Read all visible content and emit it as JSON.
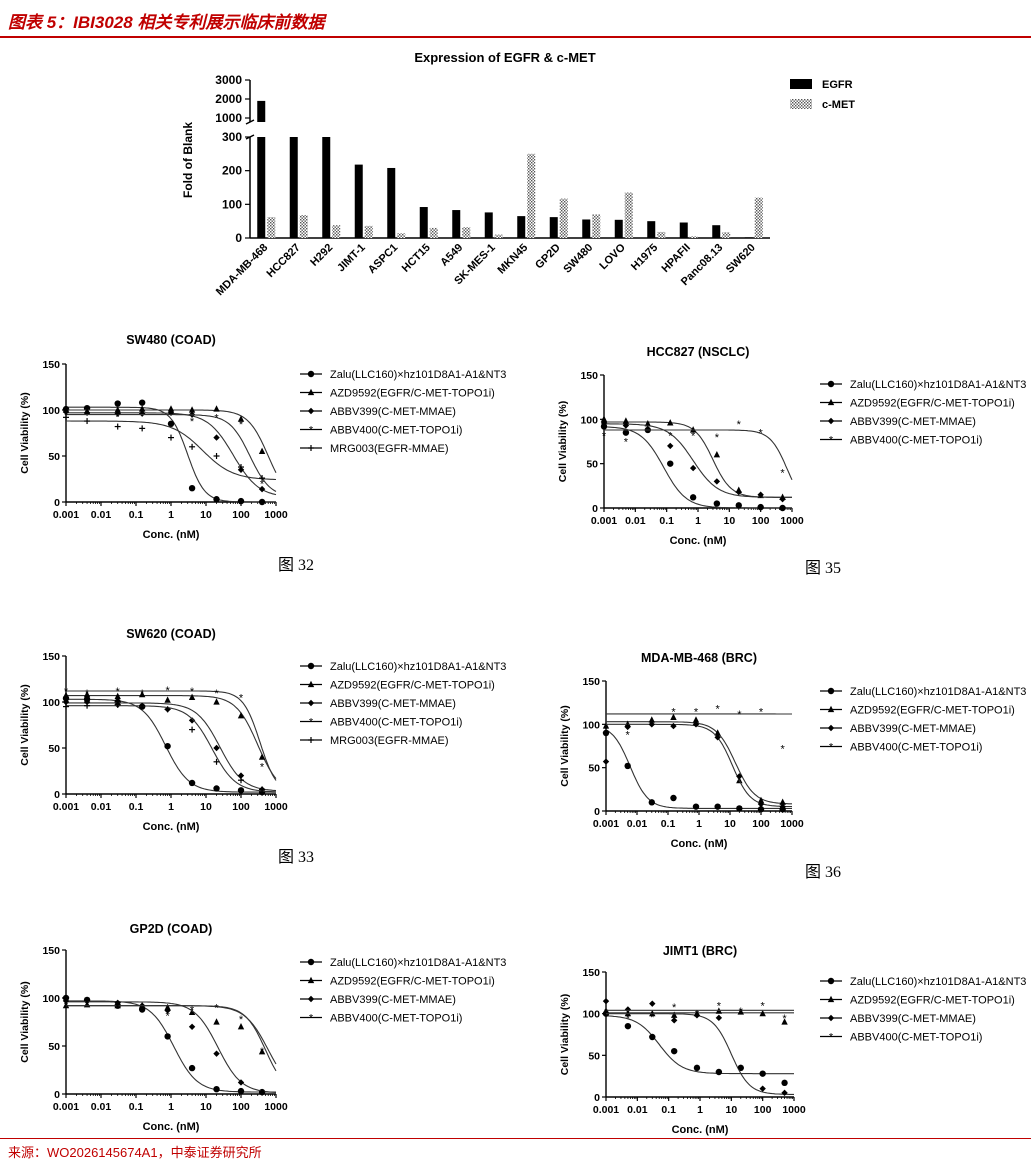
{
  "header": {
    "title": "图表 5：IBI3028 相关专利展示临床前数据"
  },
  "footer": {
    "source": "来源：WO2026145674A1，中泰证券研究所"
  },
  "colors": {
    "accent": "#c00000",
    "ink": "#000000",
    "fit": "#333333"
  },
  "chart_data": [
    {
      "id": "bar",
      "type": "bar",
      "title": "Expression of EGFR & c-MET",
      "ylabel": "Fold of Blank",
      "broken_axis": true,
      "yticks_lower": [
        0,
        100,
        200,
        300
      ],
      "yticks_upper": [
        1000,
        2000,
        3000
      ],
      "categories": [
        "MDA-MB-468",
        "HCC827",
        "H292",
        "JIMT-1",
        "ASPC1",
        "HCT15",
        "A549",
        "SK-MES-1",
        "MKN45",
        "GP2D",
        "SW480",
        "LOVO",
        "H1975",
        "HPAFII",
        "Panc08.13",
        "SW620"
      ],
      "series": [
        {
          "name": "EGFR",
          "values": [
            1900,
            300,
            300,
            218,
            208,
            92,
            83,
            76,
            65,
            62,
            55,
            54,
            50,
            46,
            38,
            2
          ]
        },
        {
          "name": "c-MET",
          "values": [
            62,
            68,
            38,
            36,
            14,
            30,
            32,
            10,
            250,
            117,
            70,
            135,
            18,
            5,
            17,
            120
          ]
        }
      ]
    },
    {
      "id": "sw480",
      "type": "scatter",
      "title": "SW480 (COAD)",
      "caption": "图 32",
      "xlabel": "Conc. (nM)",
      "ylabel": "Cell Viability (%)",
      "xticks": [
        "0.001",
        "0.01",
        "0.1",
        "1",
        "10",
        "100",
        "1000"
      ],
      "yticks": [
        0,
        50,
        100,
        150
      ],
      "xlim": [
        0.001,
        1000
      ],
      "ylim": [
        0,
        150
      ],
      "xscale": "log",
      "series": [
        {
          "name": "Zalu(LLC160)×hz101D8A1-A1&NT3",
          "marker": "circle",
          "x": [
            0.001,
            0.004,
            0.03,
            0.15,
            1,
            4,
            20,
            100,
            400
          ],
          "y": [
            101,
            102,
            107,
            108,
            85,
            15,
            3,
            1,
            0
          ],
          "fit": {
            "top": 103,
            "bottom": 0,
            "ec50": 3,
            "hill": 1.8
          }
        },
        {
          "name": "AZD9592(EGFR/C-MET-TOPO1i)",
          "marker": "triangle",
          "x": [
            0.001,
            0.004,
            0.03,
            0.15,
            1,
            4,
            20,
            100,
            400
          ],
          "y": [
            100,
            98,
            100,
            101,
            101,
            100,
            101,
            90,
            55
          ],
          "fit": {
            "top": 100,
            "bottom": 0,
            "ec50": 600,
            "hill": 1.5
          }
        },
        {
          "name": "ABBV399(C-MET-MMAE)",
          "marker": "diamond",
          "x": [
            0.001,
            0.004,
            0.03,
            0.15,
            1,
            4,
            20,
            100,
            400
          ],
          "y": [
            98,
            97,
            96,
            96,
            97,
            95,
            70,
            35,
            14
          ],
          "fit": {
            "top": 97,
            "bottom": 5,
            "ec50": 60,
            "hill": 1.2
          }
        },
        {
          "name": "ABBV400(C-MET-TOPO1i)",
          "marker": "star",
          "x": [
            0.001,
            0.004,
            0.03,
            0.15,
            1,
            4,
            20,
            100,
            400
          ],
          "y": [
            95,
            96,
            93,
            96,
            95,
            88,
            92,
            85,
            20
          ],
          "fit": {
            "top": 95,
            "bottom": 5,
            "ec50": 180,
            "hill": 1.5
          }
        },
        {
          "name": "MRG003(EGFR-MMAE)",
          "marker": "plus",
          "x": [
            0.001,
            0.004,
            0.03,
            0.15,
            1,
            4,
            20,
            100,
            400
          ],
          "y": [
            92,
            88,
            82,
            80,
            70,
            60,
            50,
            38,
            26
          ],
          "fit": {
            "top": 88,
            "bottom": 24,
            "ec50": 8,
            "hill": 1.0
          }
        }
      ]
    },
    {
      "id": "hcc827",
      "type": "scatter",
      "title": "HCC827 (NSCLC)",
      "caption": "图 35",
      "xlabel": "Conc. (nM)",
      "ylabel": "Cell Viability (%)",
      "xticks": [
        "0.001",
        "0.01",
        "0.1",
        "1",
        "10",
        "100",
        "1000"
      ],
      "yticks": [
        0,
        50,
        100,
        150
      ],
      "xlim": [
        0.001,
        1000
      ],
      "ylim": [
        0,
        150
      ],
      "xscale": "log",
      "series": [
        {
          "name": "Zalu(LLC160)×hz101D8A1-A1&NT3",
          "marker": "circle",
          "x": [
            0.001,
            0.005,
            0.025,
            0.13,
            0.7,
            4,
            20,
            100,
            500
          ],
          "y": [
            92,
            85,
            88,
            50,
            12,
            5,
            3,
            1,
            0
          ],
          "fit": {
            "top": 92,
            "bottom": 0,
            "ec50": 0.08,
            "hill": 1.2
          }
        },
        {
          "name": "AZD9592(EGFR/C-MET-TOPO1i)",
          "marker": "triangle",
          "x": [
            0.001,
            0.005,
            0.025,
            0.13,
            0.7,
            4,
            20,
            100,
            500
          ],
          "y": [
            100,
            98,
            95,
            96,
            88,
            60,
            20,
            14,
            12
          ],
          "fit": {
            "top": 97,
            "bottom": 12,
            "ec50": 3,
            "hill": 1.5
          }
        },
        {
          "name": "ABBV399(C-MET-MMAE)",
          "marker": "diamond",
          "x": [
            0.001,
            0.005,
            0.025,
            0.13,
            0.7,
            4,
            20,
            100,
            500
          ],
          "y": [
            96,
            93,
            88,
            70,
            45,
            30,
            18,
            15,
            10
          ],
          "fit": {
            "top": 95,
            "bottom": 12,
            "ec50": 0.7,
            "hill": 1.1
          }
        },
        {
          "name": "ABBV400(C-MET-TOPO1i)",
          "marker": "star",
          "x": [
            0.001,
            0.005,
            0.025,
            0.13,
            0.7,
            4,
            20,
            100,
            500
          ],
          "y": [
            82,
            75,
            90,
            82,
            82,
            80,
            95,
            85,
            40
          ],
          "fit": {
            "top": 88,
            "bottom": 0,
            "ec50": 700,
            "hill": 1.6
          }
        }
      ]
    },
    {
      "id": "sw620",
      "type": "scatter",
      "title": "SW620 (COAD)",
      "caption": "图 33",
      "xlabel": "Conc. (nM)",
      "ylabel": "Cell Viability (%)",
      "xticks": [
        "0.001",
        "0.01",
        "0.1",
        "1",
        "10",
        "100",
        "1000"
      ],
      "yticks": [
        0,
        50,
        100,
        150
      ],
      "xlim": [
        0.001,
        1000
      ],
      "ylim": [
        0,
        150
      ],
      "xscale": "log",
      "series": [
        {
          "name": "Zalu(LLC160)×hz101D8A1-A1&NT3",
          "marker": "circle",
          "x": [
            0.001,
            0.004,
            0.03,
            0.15,
            0.8,
            4,
            20,
            100,
            400
          ],
          "y": [
            104,
            103,
            100,
            95,
            52,
            12,
            6,
            4,
            2
          ],
          "fit": {
            "top": 103,
            "bottom": 2,
            "ec50": 0.7,
            "hill": 1.3
          }
        },
        {
          "name": "AZD9592(EGFR/C-MET-TOPO1i)",
          "marker": "triangle",
          "x": [
            0.001,
            0.004,
            0.03,
            0.15,
            0.8,
            4,
            20,
            100,
            400
          ],
          "y": [
            107,
            108,
            106,
            108,
            102,
            105,
            100,
            85,
            40
          ],
          "fit": {
            "top": 107,
            "bottom": 0,
            "ec50": 300,
            "hill": 1.4
          }
        },
        {
          "name": "ABBV399(C-MET-MMAE)",
          "marker": "diamond",
          "x": [
            0.001,
            0.004,
            0.03,
            0.15,
            0.8,
            4,
            20,
            100,
            400
          ],
          "y": [
            100,
            100,
            97,
            95,
            92,
            80,
            50,
            20,
            5
          ],
          "fit": {
            "top": 99,
            "bottom": 3,
            "ec50": 25,
            "hill": 1.3
          }
        },
        {
          "name": "ABBV400(C-MET-TOPO1i)",
          "marker": "star",
          "x": [
            0.001,
            0.004,
            0.03,
            0.15,
            0.8,
            4,
            20,
            100,
            400
          ],
          "y": [
            112,
            110,
            112,
            110,
            113,
            112,
            110,
            105,
            30
          ],
          "fit": {
            "top": 112,
            "bottom": 0,
            "ec50": 350,
            "hill": 1.8
          }
        },
        {
          "name": "MRG003(EGFR-MMAE)",
          "marker": "plus",
          "x": [
            0.001,
            0.004,
            0.03,
            0.15,
            0.8,
            4,
            20,
            100,
            400
          ],
          "y": [
            95,
            96,
            97,
            96,
            92,
            70,
            35,
            15,
            5
          ],
          "fit": {
            "top": 96,
            "bottom": 2,
            "ec50": 15,
            "hill": 1.3
          }
        }
      ]
    },
    {
      "id": "mdamb468",
      "type": "scatter",
      "title": "MDA-MB-468 (BRC)",
      "caption": "图 36",
      "xlabel": "Conc. (nM)",
      "ylabel": "Cell Viability (%)",
      "xticks": [
        "0.001",
        "0.01",
        "0.1",
        "1",
        "10",
        "100",
        "1000"
      ],
      "yticks": [
        0,
        50,
        100,
        150
      ],
      "xlim": [
        0.001,
        1000
      ],
      "ylim": [
        0,
        150
      ],
      "xscale": "log",
      "series": [
        {
          "name": "Zalu(LLC160)×hz101D8A1-A1&NT3",
          "marker": "circle",
          "x": [
            0.001,
            0.005,
            0.03,
            0.15,
            0.8,
            4,
            20,
            100,
            500
          ],
          "y": [
            90,
            52,
            10,
            15,
            5,
            5,
            3,
            2,
            2
          ],
          "fit": {
            "top": 100,
            "bottom": 3,
            "ec50": 0.006,
            "hill": 1.5
          }
        },
        {
          "name": "AZD9592(EGFR/C-MET-TOPO1i)",
          "marker": "triangle",
          "x": [
            0.001,
            0.005,
            0.03,
            0.15,
            0.8,
            4,
            20,
            100,
            500
          ],
          "y": [
            98,
            100,
            105,
            108,
            105,
            90,
            35,
            12,
            10
          ],
          "fit": {
            "top": 103,
            "bottom": 8,
            "ec50": 15,
            "hill": 1.4
          }
        },
        {
          "name": "ABBV399(C-MET-MMAE)",
          "marker": "diamond",
          "x": [
            0.001,
            0.005,
            0.03,
            0.15,
            0.8,
            4,
            20,
            100,
            500
          ],
          "y": [
            57,
            97,
            100,
            98,
            100,
            85,
            40,
            8,
            5
          ],
          "fit": {
            "top": 100,
            "bottom": 5,
            "ec50": 12,
            "hill": 1.5
          }
        },
        {
          "name": "ABBV400(C-MET-TOPO1i)",
          "marker": "star",
          "x": [
            0.001,
            0.005,
            0.03,
            0.15,
            0.8,
            4,
            20,
            100,
            500
          ],
          "y": [
            95,
            88,
            100,
            115,
            115,
            118,
            112,
            115,
            72
          ],
          "fit": {
            "top": 112,
            "bottom": 0,
            "ec50": 100000,
            "hill": 1.5
          }
        }
      ]
    },
    {
      "id": "gp2d",
      "type": "scatter",
      "title": "GP2D (COAD)",
      "caption": "",
      "xlabel": "Conc. (nM)",
      "ylabel": "Cell Viability (%)",
      "xticks": [
        "0.001",
        "0.01",
        "0.1",
        "1",
        "10",
        "100",
        "1000"
      ],
      "yticks": [
        0,
        50,
        100,
        150
      ],
      "xlim": [
        0.001,
        1000
      ],
      "ylim": [
        0,
        150
      ],
      "xscale": "log",
      "series": [
        {
          "name": "Zalu(LLC160)×hz101D8A1-A1&NT3",
          "marker": "circle",
          "x": [
            0.001,
            0.004,
            0.03,
            0.15,
            0.8,
            4,
            20,
            100,
            400
          ],
          "y": [
            100,
            98,
            92,
            88,
            60,
            27,
            5,
            3,
            2
          ],
          "fit": {
            "top": 97,
            "bottom": 2,
            "ec50": 1.2,
            "hill": 1.3
          }
        },
        {
          "name": "AZD9592(EGFR/C-MET-TOPO1i)",
          "marker": "triangle",
          "x": [
            0.001,
            0.004,
            0.03,
            0.15,
            0.8,
            4,
            20,
            100,
            400
          ],
          "y": [
            92,
            93,
            92,
            92,
            90,
            85,
            75,
            70,
            44
          ],
          "fit": {
            "top": 92,
            "bottom": 0,
            "ec50": 600,
            "hill": 1.3
          }
        },
        {
          "name": "ABBV399(C-MET-MMAE)",
          "marker": "diamond",
          "x": [
            0.001,
            0.004,
            0.03,
            0.15,
            0.8,
            4,
            20,
            100,
            400
          ],
          "y": [
            97,
            98,
            95,
            92,
            87,
            70,
            42,
            12,
            2
          ],
          "fit": {
            "top": 96,
            "bottom": 1,
            "ec50": 22,
            "hill": 1.3
          }
        },
        {
          "name": "ABBV400(C-MET-TOPO1i)",
          "marker": "star",
          "x": [
            0.001,
            0.004,
            0.03,
            0.15,
            0.8,
            4,
            20,
            100,
            400
          ],
          "y": [
            92,
            93,
            90,
            86,
            82,
            88,
            90,
            78,
            45
          ],
          "fit": {
            "top": 92,
            "bottom": 0,
            "ec50": 500,
            "hill": 1.5
          }
        }
      ]
    },
    {
      "id": "jimt1",
      "type": "scatter",
      "title": "JIMT1 (BRC)",
      "caption": "",
      "xlabel": "Conc. (nM)",
      "ylabel": "Cell Viability (%)",
      "xticks": [
        "0.001",
        "0.01",
        "0.1",
        "1",
        "10",
        "100",
        "1000"
      ],
      "yticks": [
        0,
        50,
        100,
        150
      ],
      "xlim": [
        0.001,
        1000
      ],
      "ylim": [
        0,
        150
      ],
      "xscale": "log",
      "series": [
        {
          "name": "Zalu(LLC160)×hz101D8A1-A1&NT3",
          "marker": "circle",
          "x": [
            0.001,
            0.005,
            0.03,
            0.15,
            0.8,
            4,
            20,
            100,
            500
          ],
          "y": [
            100,
            85,
            72,
            55,
            35,
            30,
            35,
            28,
            17
          ],
          "fit": {
            "top": 98,
            "bottom": 28,
            "ec50": 0.05,
            "hill": 1.2
          }
        },
        {
          "name": "AZD9592(EGFR/C-MET-TOPO1i)",
          "marker": "triangle",
          "x": [
            0.001,
            0.005,
            0.03,
            0.15,
            0.8,
            4,
            20,
            100,
            500
          ],
          "y": [
            103,
            100,
            100,
            98,
            100,
            103,
            102,
            100,
            90
          ],
          "fit": {
            "top": 101,
            "bottom": 101,
            "ec50": 1,
            "hill": 1
          }
        },
        {
          "name": "ABBV399(C-MET-MMAE)",
          "marker": "diamond",
          "x": [
            0.001,
            0.005,
            0.03,
            0.15,
            0.8,
            4,
            20,
            100,
            500
          ],
          "y": [
            115,
            105,
            112,
            92,
            98,
            95,
            35,
            10,
            5
          ],
          "fit": {
            "top": 100,
            "bottom": 3,
            "ec50": 10,
            "hill": 1.5
          }
        },
        {
          "name": "ABBV400(C-MET-TOPO1i)",
          "marker": "star",
          "x": [
            0.001,
            0.005,
            0.03,
            0.15,
            0.8,
            4,
            20,
            100,
            500
          ],
          "y": [
            102,
            95,
            96,
            108,
            100,
            110,
            103,
            110,
            95
          ],
          "fit": {
            "top": 104,
            "bottom": 104,
            "ec50": 1,
            "hill": 1
          }
        }
      ]
    }
  ]
}
